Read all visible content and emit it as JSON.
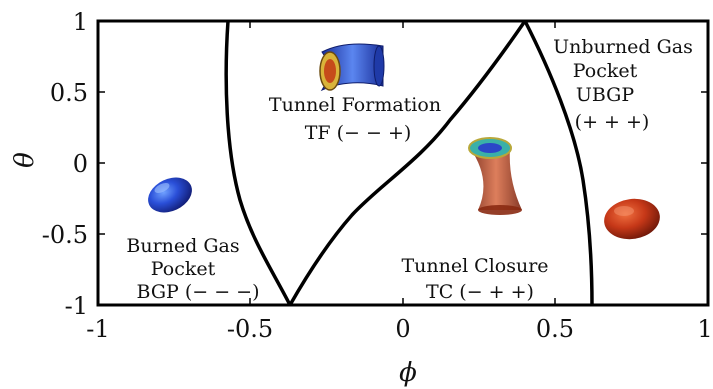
{
  "axes": {
    "x_symbol": "ϕ",
    "y_symbol": "θ",
    "x_ticks": [
      "-1",
      "-0.5",
      "0",
      "0.5",
      "1"
    ],
    "y_ticks": [
      "1",
      "0.5",
      "0",
      "-0.5",
      "-1"
    ]
  },
  "regions": {
    "burned_gas_pocket": {
      "line1": "Burned Gas",
      "line2": "Pocket",
      "line3": "BGP (− − −)"
    },
    "tunnel_formation": {
      "line1": "Tunnel Formation",
      "line2": "TF (− − +)"
    },
    "tunnel_closure": {
      "line1": "Tunnel Closure",
      "line2": "TC (− + +)"
    },
    "unburned_gas_pocket": {
      "line1": "Unburned Gas",
      "line2": "Pocket",
      "line3": "UBGP",
      "line4": "(+ + +)"
    }
  },
  "colors": {
    "boundary": "#000000",
    "burned_blob": "#2040c8",
    "unburned_blob": "#c8361a",
    "tunnel_blue": "#3a5fd0",
    "tunnel_red": "#b8452a"
  },
  "icons": {
    "bgp_shape": "blue-ellipsoid-icon",
    "tf_shape": "blue-tunnel-icon",
    "tc_shape": "red-tunnel-icon",
    "ubgp_shape": "red-ellipsoid-icon"
  }
}
